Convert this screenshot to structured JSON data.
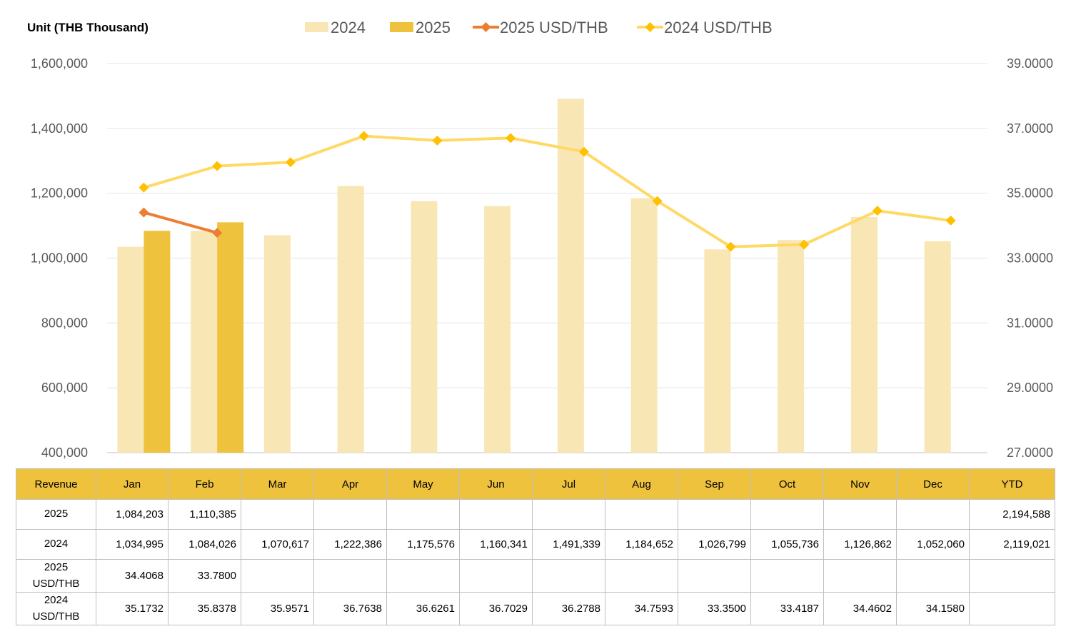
{
  "chart_data": {
    "type": "bar",
    "unit_label": "Unit (THB  Thousand)",
    "categories": [
      "Jan",
      "Feb",
      "Mar",
      "Apr",
      "May",
      "Jun",
      "Jul",
      "Aug",
      "Sep",
      "Oct",
      "Nov",
      "Dec"
    ],
    "series": [
      {
        "name": "2024",
        "kind": "bar",
        "axis": "left",
        "color": "#f8e6b4",
        "values": [
          1034995,
          1084026,
          1070617,
          1222386,
          1175576,
          1160341,
          1491339,
          1184652,
          1026799,
          1055736,
          1126862,
          1052060
        ]
      },
      {
        "name": "2025",
        "kind": "bar",
        "axis": "left",
        "color": "#efc23e",
        "values": [
          1084203,
          1110385,
          null,
          null,
          null,
          null,
          null,
          null,
          null,
          null,
          null,
          null
        ]
      },
      {
        "name": "2025 USD/THB",
        "kind": "line",
        "axis": "right",
        "color": "#ed7d31",
        "marker": "diamond",
        "values": [
          34.4068,
          33.78,
          null,
          null,
          null,
          null,
          null,
          null,
          null,
          null,
          null,
          null
        ]
      },
      {
        "name": "2024 USD/THB",
        "kind": "line",
        "axis": "right",
        "color": "#ffd966",
        "marker_color": "#ffc000",
        "marker": "diamond",
        "values": [
          35.1732,
          35.8378,
          35.9571,
          36.7638,
          36.6261,
          36.7029,
          36.2788,
          34.7593,
          33.35,
          33.4187,
          34.4602,
          34.158
        ]
      }
    ],
    "y_left": {
      "range": [
        400000,
        1600000
      ],
      "ticks": [
        "1,600,000",
        "1,400,000",
        "1,200,000",
        "1,000,000",
        "800,000",
        "600,000",
        "400,000"
      ]
    },
    "y_right": {
      "range": [
        27,
        39
      ],
      "ticks": [
        "39.0000",
        "37.0000",
        "35.0000",
        "33.0000",
        "31.0000",
        "29.0000",
        "27.0000"
      ]
    },
    "grid": true,
    "legend_position": "top"
  },
  "table": {
    "header": [
      "Revenue",
      "Jan",
      "Feb",
      "Mar",
      "Apr",
      "May",
      "Jun",
      "Jul",
      "Aug",
      "Sep",
      "Oct",
      "Nov",
      "Dec",
      "YTD"
    ],
    "rows": [
      {
        "label": "2025",
        "cells": [
          "1,084,203",
          "1,110,385",
          "",
          "",
          "",
          "",
          "",
          "",
          "",
          "",
          "",
          "",
          "2,194,588"
        ]
      },
      {
        "label": "2024",
        "cells": [
          "1,034,995",
          "1,084,026",
          "1,070,617",
          "1,222,386",
          "1,175,576",
          "1,160,341",
          "1,491,339",
          "1,184,652",
          "1,026,799",
          "1,055,736",
          "1,126,862",
          "1,052,060",
          "2,119,021"
        ]
      },
      {
        "label": "2025 USD/THB",
        "cells": [
          "34.4068",
          "33.7800",
          "",
          "",
          "",
          "",
          "",
          "",
          "",
          "",
          "",
          "",
          ""
        ]
      },
      {
        "label": "2024 USD/THB",
        "cells": [
          "35.1732",
          "35.8378",
          "35.9571",
          "36.7638",
          "36.6261",
          "36.7029",
          "36.2788",
          "34.7593",
          "33.3500",
          "33.4187",
          "34.4602",
          "34.1580",
          ""
        ]
      }
    ]
  }
}
